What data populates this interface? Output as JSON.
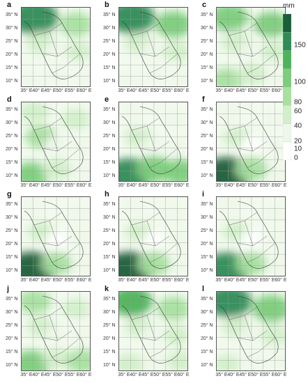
{
  "panels": [
    {
      "label": "a",
      "wet": [
        [
          "tl",
          0.9
        ],
        [
          "tr",
          0.45
        ],
        [
          "ml",
          0.35
        ],
        [
          "mr",
          0.25
        ],
        [
          "bl",
          0.2
        ],
        [
          "bc",
          0.15
        ],
        [
          "br",
          0.15
        ],
        [
          "center",
          0.1
        ]
      ]
    },
    {
      "label": "b",
      "wet": [
        [
          "tl",
          0.85
        ],
        [
          "tr",
          0.55
        ],
        [
          "ml",
          0.3
        ],
        [
          "mr",
          0.3
        ],
        [
          "bl",
          0.15
        ],
        [
          "bc",
          0.1
        ],
        [
          "br",
          0.15
        ],
        [
          "center",
          0.1
        ]
      ]
    },
    {
      "label": "c",
      "wet": [
        [
          "tl",
          0.6
        ],
        [
          "tr",
          0.5
        ],
        [
          "ml",
          0.35
        ],
        [
          "mr",
          0.3
        ],
        [
          "bl",
          0.45
        ],
        [
          "bc",
          0.35
        ],
        [
          "br",
          0.2
        ],
        [
          "center",
          0.1
        ]
      ]
    },
    {
      "label": "d",
      "wet": [
        [
          "tl",
          0.35
        ],
        [
          "tr",
          0.3
        ],
        [
          "ml",
          0.4
        ],
        [
          "mr",
          0.2
        ],
        [
          "bl",
          0.5
        ],
        [
          "bc",
          0.35
        ],
        [
          "br",
          0.15
        ],
        [
          "center",
          0.15
        ]
      ]
    },
    {
      "label": "e",
      "wet": [
        [
          "tl",
          0.2
        ],
        [
          "tr",
          0.15
        ],
        [
          "ml",
          0.3
        ],
        [
          "mr",
          0.2
        ],
        [
          "bl",
          0.85
        ],
        [
          "bc",
          0.55
        ],
        [
          "br",
          0.5
        ],
        [
          "center",
          0.1
        ]
      ]
    },
    {
      "label": "f",
      "wet": [
        [
          "tl",
          0.15
        ],
        [
          "tr",
          0.15
        ],
        [
          "ml",
          0.25
        ],
        [
          "mr",
          0.15
        ],
        [
          "bl",
          0.95
        ],
        [
          "bc",
          0.45
        ],
        [
          "br",
          0.15
        ],
        [
          "center",
          0.05
        ]
      ]
    },
    {
      "label": "g",
      "wet": [
        [
          "tl",
          0.15
        ],
        [
          "tr",
          0.15
        ],
        [
          "ml",
          0.25
        ],
        [
          "mr",
          0.15
        ],
        [
          "bl",
          0.95
        ],
        [
          "bc",
          0.4
        ],
        [
          "br",
          0.15
        ],
        [
          "center",
          0.05
        ]
      ]
    },
    {
      "label": "h",
      "wet": [
        [
          "tl",
          0.15
        ],
        [
          "tr",
          0.15
        ],
        [
          "ml",
          0.25
        ],
        [
          "mr",
          0.15
        ],
        [
          "bl",
          0.95
        ],
        [
          "bc",
          0.45
        ],
        [
          "br",
          0.15
        ],
        [
          "center",
          0.05
        ]
      ]
    },
    {
      "label": "i",
      "wet": [
        [
          "tl",
          0.2
        ],
        [
          "tr",
          0.2
        ],
        [
          "ml",
          0.25
        ],
        [
          "mr",
          0.15
        ],
        [
          "bl",
          0.9
        ],
        [
          "bc",
          0.4
        ],
        [
          "br",
          0.2
        ],
        [
          "center",
          0.05
        ]
      ]
    },
    {
      "label": "j",
      "wet": [
        [
          "tl",
          0.45
        ],
        [
          "tr",
          0.25
        ],
        [
          "ml",
          0.3
        ],
        [
          "mr",
          0.2
        ],
        [
          "bl",
          0.6
        ],
        [
          "bc",
          0.3
        ],
        [
          "br",
          0.45
        ],
        [
          "center",
          0.1
        ]
      ]
    },
    {
      "label": "k",
      "wet": [
        [
          "tl",
          0.7
        ],
        [
          "tr",
          0.45
        ],
        [
          "ml",
          0.3
        ],
        [
          "mr",
          0.25
        ],
        [
          "bl",
          0.35
        ],
        [
          "bc",
          0.2
        ],
        [
          "br",
          0.3
        ],
        [
          "center",
          0.15
        ]
      ]
    },
    {
      "label": "l",
      "wet": [
        [
          "tl",
          0.8
        ],
        [
          "tr",
          0.6
        ],
        [
          "ml",
          0.3
        ],
        [
          "mr",
          0.3
        ],
        [
          "bl",
          0.25
        ],
        [
          "bc",
          0.15
        ],
        [
          "br",
          0.2
        ],
        [
          "center",
          0.1
        ]
      ]
    }
  ],
  "y_ticks": [
    "35° N",
    "30° N",
    "25° N",
    "20° N",
    "15° N",
    "10° N"
  ],
  "x_ticks": [
    "35° E",
    "40° E",
    "45° E",
    "50° E",
    "55° E",
    "60° E"
  ],
  "colorbar": {
    "unit": "mm",
    "ticks": [
      "150",
      "100",
      "80",
      "60",
      "40",
      "20",
      "10",
      "0"
    ],
    "colors": [
      "#ffffff",
      "#eef8ea",
      "#d2efc9",
      "#a8e0a0",
      "#7ccd7c",
      "#4db35a",
      "#2e8b57",
      "#1a5e3a"
    ]
  }
}
